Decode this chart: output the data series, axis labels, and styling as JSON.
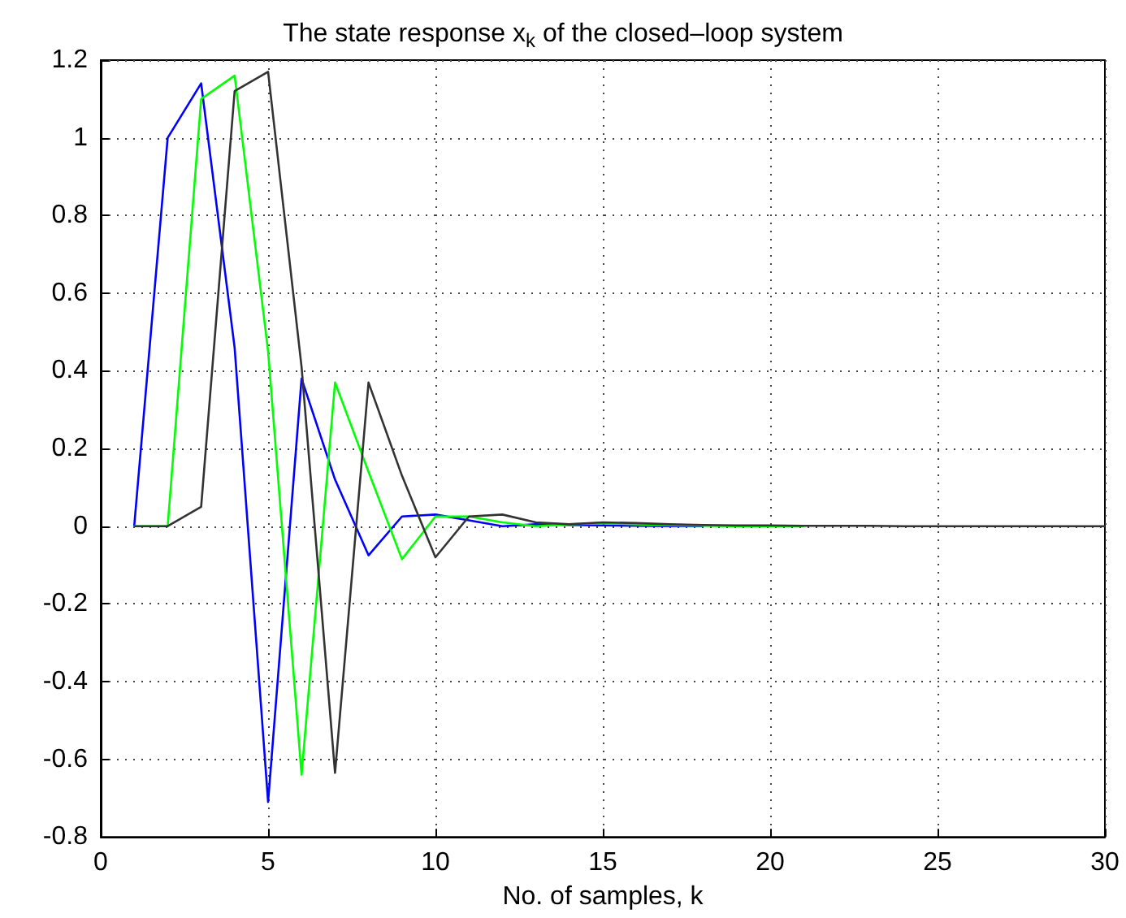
{
  "chart_data": {
    "type": "line",
    "title": "The state response x$_{k}$ of the closed–loop system",
    "xlabel": "No. of samples, k",
    "x": [
      1,
      2,
      3,
      4,
      5,
      6,
      7,
      8,
      9,
      10,
      11,
      12,
      13,
      14,
      15,
      16,
      17,
      18,
      19,
      20,
      21,
      22,
      23,
      24,
      25,
      26,
      27,
      28,
      29,
      30
    ],
    "series": [
      {
        "color": "#0000ff",
        "values": [
          0,
          1.0,
          1.14,
          0.46,
          -0.71,
          0.38,
          0.12,
          -0.075,
          0.025,
          0.03,
          0.015,
          0.0,
          0.005,
          0.003,
          0.002,
          0.001,
          0,
          0,
          null,
          null,
          null,
          null,
          null,
          null,
          null,
          null,
          null,
          null,
          null,
          null
        ]
      },
      {
        "color": "#00ff00",
        "values": [
          0,
          0,
          1.1,
          1.16,
          0.45,
          -0.64,
          0.37,
          0.14,
          -0.085,
          0.025,
          0.025,
          0.01,
          0.0,
          0.005,
          0.008,
          0.005,
          0.002,
          0.001,
          0,
          0,
          0,
          null,
          null,
          null,
          null,
          null,
          null,
          null,
          null,
          null
        ]
      },
      {
        "color": "#333333",
        "values": [
          0,
          0,
          0.05,
          1.12,
          1.17,
          0.41,
          -0.635,
          0.37,
          0.13,
          -0.08,
          0.025,
          0.03,
          0.01,
          0.005,
          0.01,
          0.008,
          0.005,
          0.003,
          0.002,
          0.002,
          0.001,
          0.001,
          0.001,
          0,
          0,
          0,
          0,
          0,
          0,
          0
        ]
      }
    ],
    "xlim": [
      0,
      30
    ],
    "xticks": [
      0,
      5,
      10,
      15,
      20,
      25,
      30
    ],
    "ylim": [
      -0.8,
      1.2
    ],
    "yticks": [
      -0.8,
      -0.6,
      -0.4,
      -0.2,
      0,
      0.2,
      0.4,
      0.6,
      0.8,
      1,
      1.2
    ],
    "grid": true,
    "marker": "none",
    "line_style": "solid"
  }
}
